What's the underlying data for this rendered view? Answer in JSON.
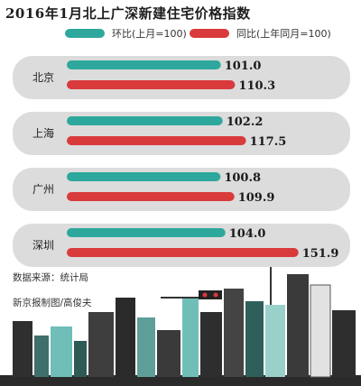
{
  "chart_data": {
    "type": "bar",
    "title": "2016年1月北上广深新建住宅价格指数",
    "categories": [
      "北京",
      "上海",
      "广州",
      "深圳"
    ],
    "series": [
      {
        "name": "环比(上月=100)",
        "values": [
          101.0,
          102.2,
          100.8,
          104.0
        ],
        "color": "#2ea89c"
      },
      {
        "name": "同比(上年同月=100)",
        "values": [
          110.3,
          117.5,
          109.9,
          151.9
        ],
        "color": "#d93a3c"
      }
    ],
    "value_labels": [
      [
        "101.0",
        "110.3"
      ],
      [
        "102.2",
        "117.5"
      ],
      [
        "100.8",
        "109.9"
      ],
      [
        "104.0",
        "151.9"
      ]
    ],
    "orientation": "horizontal",
    "legend_position": "top"
  },
  "footer": {
    "source": "数据来源：统计局",
    "credit": "新京报制图/高俊夫"
  },
  "colors": {
    "panel": "#dcdcdc",
    "teal": "#2ea89c",
    "red": "#d93a3c"
  }
}
